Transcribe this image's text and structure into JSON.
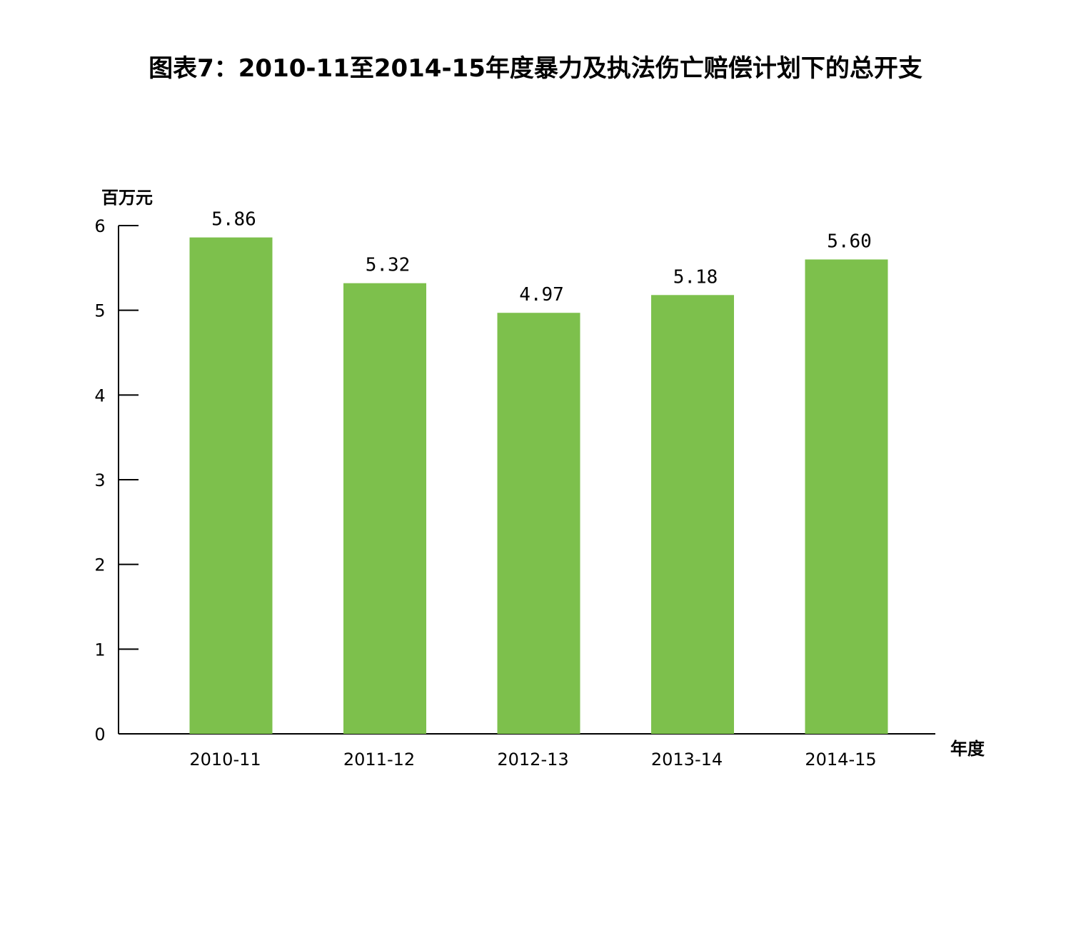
{
  "chart_data": {
    "type": "bar",
    "title": "图表7：2010-11至2014-15年度暴力及执法伤亡赔偿计划下的总开支",
    "xlabel": "年度",
    "ylabel": "百万元",
    "categories": [
      "2010-11",
      "2011-12",
      "2012-13",
      "2013-14",
      "2014-15"
    ],
    "values": [
      5.86,
      5.32,
      4.97,
      5.18,
      5.6
    ],
    "value_labels": [
      "5.86",
      "5.32",
      "4.97",
      "5.18",
      "5.60"
    ],
    "ylim": [
      0,
      6
    ],
    "yticks": [
      0,
      1,
      2,
      3,
      4,
      5,
      6
    ],
    "grid": false,
    "legend": "none",
    "colors": {
      "bar": "#7DC04C",
      "axis": "#000000"
    }
  }
}
